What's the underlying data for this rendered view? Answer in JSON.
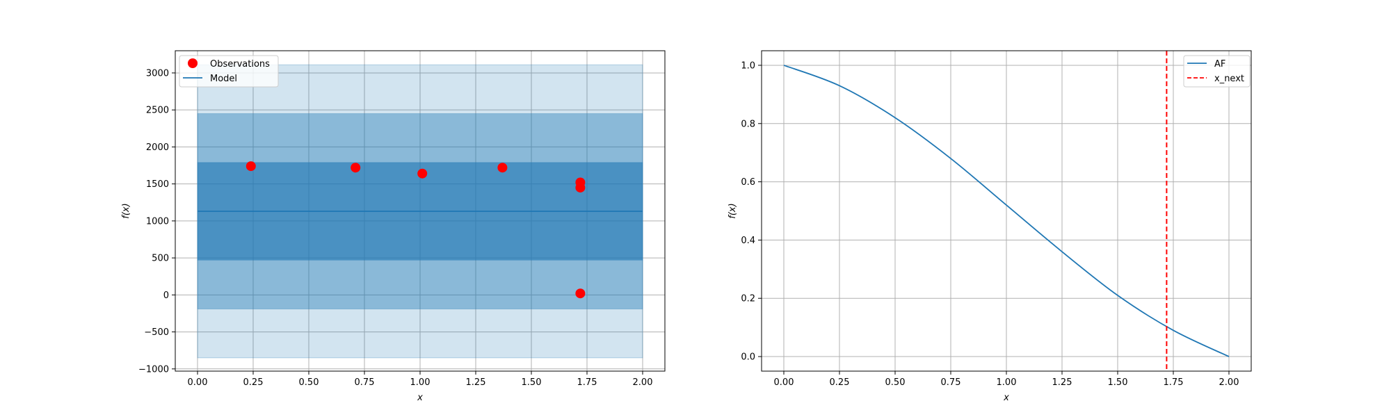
{
  "chart_data": [
    {
      "type": "scatter",
      "title": "",
      "xlabel": "x",
      "ylabel": "f(x)",
      "xlim": [
        -0.1,
        2.1
      ],
      "ylim": [
        -1030,
        3300
      ],
      "xticks": [
        0.0,
        0.25,
        0.5,
        0.75,
        1.0,
        1.25,
        1.5,
        1.75,
        2.0
      ],
      "xtick_labels": [
        "0.00",
        "0.25",
        "0.50",
        "0.75",
        "1.00",
        "1.25",
        "1.50",
        "1.75",
        "2.00"
      ],
      "yticks": [
        -1000,
        -500,
        0,
        500,
        1000,
        1500,
        2000,
        2500,
        3000
      ],
      "ytick_labels": [
        "−1000",
        "−500",
        "0",
        "500",
        "1000",
        "1500",
        "2000",
        "2500",
        "3000"
      ],
      "grid": true,
      "legend_position": "top-left",
      "observations": {
        "name": "Observations",
        "color": "#ff0000",
        "x": [
          0.24,
          0.71,
          1.01,
          1.37,
          1.72,
          1.72,
          1.72
        ],
        "y": [
          1740,
          1720,
          1640,
          1720,
          1520,
          1450,
          20
        ]
      },
      "model": {
        "name": "Model",
        "color": "#1f77b4",
        "x": [
          0.0,
          2.0
        ],
        "y": [
          1130,
          1130
        ]
      },
      "bands": [
        {
          "lower": -850,
          "upper": 3110,
          "x": [
            0.0,
            2.0
          ]
        },
        {
          "lower": -190,
          "upper": 2450,
          "x": [
            0.0,
            2.0
          ]
        },
        {
          "lower": 470,
          "upper": 1790,
          "x": [
            0.0,
            2.0
          ]
        }
      ],
      "band_color": "#1f77b4"
    },
    {
      "type": "line",
      "title": "",
      "xlabel": "x",
      "ylabel": "f(x)",
      "xlim": [
        -0.1,
        2.1
      ],
      "ylim": [
        -0.05,
        1.05
      ],
      "xticks": [
        0.0,
        0.25,
        0.5,
        0.75,
        1.0,
        1.25,
        1.5,
        1.75,
        2.0
      ],
      "xtick_labels": [
        "0.00",
        "0.25",
        "0.50",
        "0.75",
        "1.00",
        "1.25",
        "1.50",
        "1.75",
        "2.00"
      ],
      "yticks": [
        0.0,
        0.2,
        0.4,
        0.6,
        0.8,
        1.0
      ],
      "ytick_labels": [
        "0.0",
        "0.2",
        "0.4",
        "0.6",
        "0.8",
        "1.0"
      ],
      "grid": true,
      "legend_position": "top-right",
      "series": [
        {
          "name": "AF",
          "color": "#1f77b4",
          "x": [
            0.0,
            0.25,
            0.5,
            0.75,
            1.0,
            1.25,
            1.5,
            1.75,
            2.0
          ],
          "y": [
            1.0,
            0.93,
            0.82,
            0.68,
            0.52,
            0.36,
            0.21,
            0.09,
            0.0
          ]
        }
      ],
      "vline": {
        "name": "x_next",
        "color": "#ff0000",
        "x": 1.72
      }
    }
  ]
}
